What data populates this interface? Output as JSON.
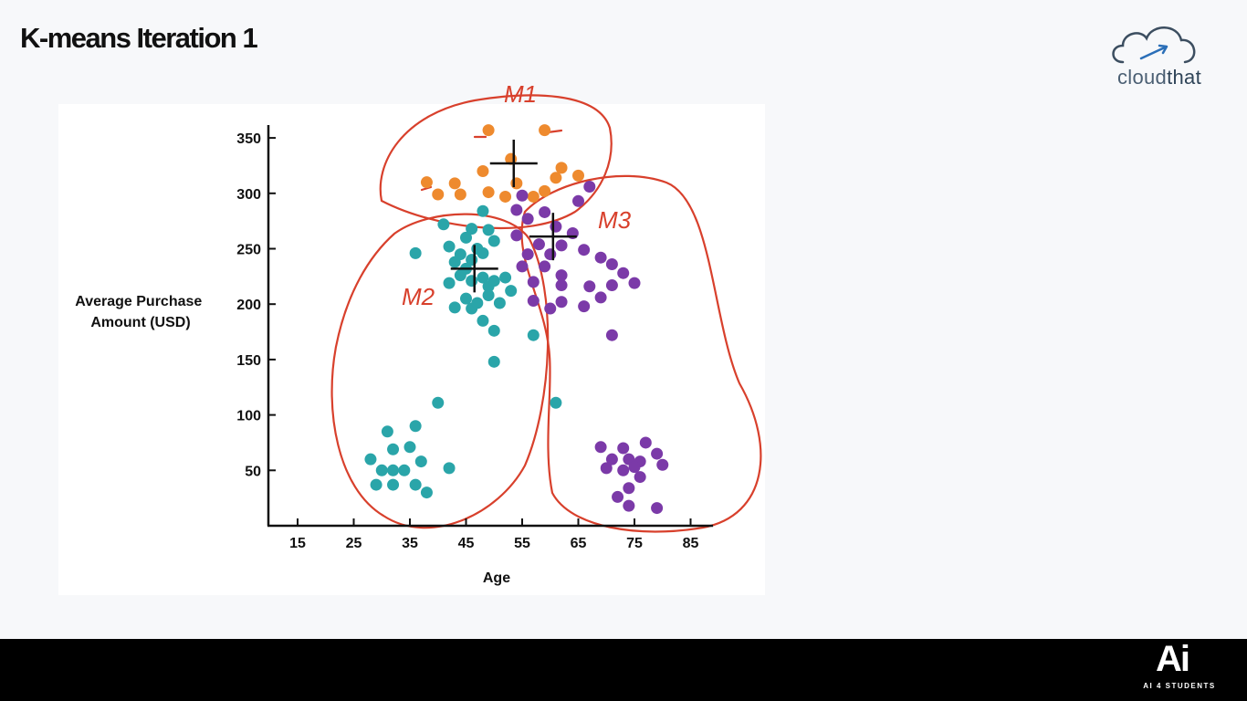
{
  "slide": {
    "title": "K-means Iteration 1"
  },
  "brand": {
    "logo_part1": "cloud",
    "logo_part2": "that",
    "footer_mark": "Ai",
    "footer_sub": "AI 4 STUDENTS"
  },
  "colors": {
    "orange": "#ee8a2e",
    "teal": "#2aa5a9",
    "purple": "#7b3aa8",
    "annotation": "#d8402c",
    "axis": "#111111"
  },
  "chart_data": {
    "type": "scatter",
    "title": "",
    "xlabel": "Age",
    "ylabel_lines": [
      "Average Purchase",
      "Amount (USD)"
    ],
    "x_ticks": [
      15,
      25,
      35,
      45,
      55,
      65,
      75,
      85
    ],
    "y_ticks": [
      50,
      100,
      150,
      200,
      250,
      300,
      350
    ],
    "xlim": [
      9.5,
      89
    ],
    "ylim": [
      0,
      355
    ],
    "grid": false,
    "series": [
      {
        "color": "orange",
        "points": [
          [
            49,
            357
          ],
          [
            53,
            331
          ],
          [
            59,
            357
          ],
          [
            38,
            310
          ],
          [
            40,
            299
          ],
          [
            43,
            309
          ],
          [
            44,
            299
          ],
          [
            48,
            320
          ],
          [
            49,
            301
          ],
          [
            52,
            297
          ],
          [
            54,
            309
          ],
          [
            57,
            297
          ],
          [
            59,
            302
          ],
          [
            61,
            314
          ],
          [
            62,
            323
          ],
          [
            65,
            316
          ]
        ]
      },
      {
        "color": "teal",
        "points": [
          [
            41,
            272
          ],
          [
            48,
            284
          ],
          [
            45,
            260
          ],
          [
            46,
            268
          ],
          [
            49,
            267
          ],
          [
            50,
            257
          ],
          [
            36,
            246
          ],
          [
            42,
            252
          ],
          [
            43,
            238
          ],
          [
            44,
            245
          ],
          [
            45,
            232
          ],
          [
            46,
            240
          ],
          [
            47,
            250
          ],
          [
            48,
            246
          ],
          [
            42,
            219
          ],
          [
            44,
            226
          ],
          [
            46,
            221
          ],
          [
            48,
            224
          ],
          [
            49,
            216
          ],
          [
            50,
            221
          ],
          [
            52,
            224
          ],
          [
            53,
            212
          ],
          [
            43,
            197
          ],
          [
            45,
            205
          ],
          [
            46,
            196
          ],
          [
            47,
            201
          ],
          [
            49,
            208
          ],
          [
            51,
            201
          ],
          [
            48,
            185
          ],
          [
            50,
            176
          ],
          [
            50,
            148
          ],
          [
            57,
            172
          ],
          [
            40,
            111
          ],
          [
            61,
            111
          ],
          [
            31,
            85
          ],
          [
            36,
            90
          ],
          [
            32,
            69
          ],
          [
            35,
            71
          ],
          [
            28,
            60
          ],
          [
            37,
            58
          ],
          [
            30,
            50
          ],
          [
            32,
            50
          ],
          [
            34,
            50
          ],
          [
            42,
            52
          ],
          [
            29,
            37
          ],
          [
            32,
            37
          ],
          [
            36,
            37
          ],
          [
            38,
            30
          ]
        ]
      },
      {
        "color": "purple",
        "points": [
          [
            67,
            306
          ],
          [
            65,
            293
          ],
          [
            55,
            298
          ],
          [
            56,
            277
          ],
          [
            59,
            283
          ],
          [
            61,
            270
          ],
          [
            54,
            285
          ],
          [
            54,
            262
          ],
          [
            58,
            254
          ],
          [
            62,
            253
          ],
          [
            64,
            264
          ],
          [
            56,
            245
          ],
          [
            60,
            245
          ],
          [
            66,
            249
          ],
          [
            69,
            242
          ],
          [
            55,
            234
          ],
          [
            59,
            234
          ],
          [
            62,
            226
          ],
          [
            71,
            236
          ],
          [
            57,
            220
          ],
          [
            62,
            217
          ],
          [
            67,
            216
          ],
          [
            73,
            228
          ],
          [
            75,
            219
          ],
          [
            71,
            217
          ],
          [
            57,
            203
          ],
          [
            60,
            196
          ],
          [
            62,
            202
          ],
          [
            66,
            198
          ],
          [
            69,
            206
          ],
          [
            71,
            172
          ],
          [
            69,
            71
          ],
          [
            73,
            70
          ],
          [
            77,
            75
          ],
          [
            79,
            65
          ],
          [
            71,
            60
          ],
          [
            74,
            60
          ],
          [
            76,
            58
          ],
          [
            70,
            52
          ],
          [
            73,
            50
          ],
          [
            75,
            53
          ],
          [
            80,
            55
          ],
          [
            76,
            44
          ],
          [
            74,
            34
          ],
          [
            72,
            26
          ],
          [
            74,
            18
          ],
          [
            79,
            16
          ]
        ]
      }
    ],
    "annotations": [
      {
        "label": "M1",
        "centroid": [
          53.5,
          327
        ]
      },
      {
        "label": "M2",
        "centroid": [
          46.5,
          232
        ]
      },
      {
        "label": "M3",
        "centroid": [
          60.5,
          261
        ]
      }
    ]
  }
}
